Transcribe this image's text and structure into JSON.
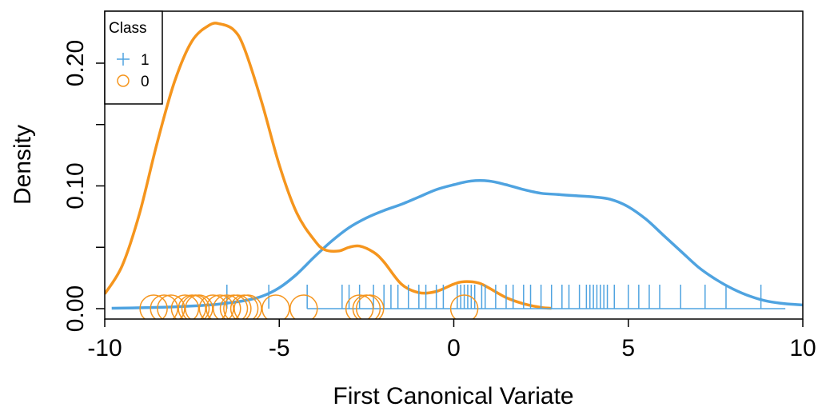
{
  "chart_data": {
    "type": "line",
    "title": "",
    "xlabel": "First Canonical Variate",
    "ylabel": "Density",
    "xlim": [
      -10,
      10
    ],
    "ylim": [
      0,
      0.24
    ],
    "x_ticks": [
      -10,
      -5,
      0,
      5,
      10
    ],
    "x_tick_labels": [
      "-10",
      "-5",
      "0",
      "5",
      "10"
    ],
    "y_ticks": [
      0,
      0.05,
      0.1,
      0.15,
      0.2
    ],
    "y_tick_labels": [
      "0.00",
      "",
      "0.10",
      "",
      "0.20"
    ],
    "legend": {
      "title": "Class",
      "position": "top-left",
      "entries": [
        {
          "label": "1",
          "marker": "plus",
          "color": "#4FA3E0"
        },
        {
          "label": "0",
          "marker": "circle",
          "color": "#F5951D"
        }
      ]
    },
    "series": [
      {
        "name": "1",
        "color": "#4FA3E0",
        "x": [
          -9.8,
          -9,
          -8,
          -7,
          -6.5,
          -6,
          -5.5,
          -5,
          -4.5,
          -4,
          -3.5,
          -3,
          -2.5,
          -2,
          -1.5,
          -1,
          -0.5,
          0,
          0.5,
          1,
          1.5,
          2,
          2.5,
          3,
          3.5,
          4,
          4.5,
          5,
          5.5,
          6,
          6.5,
          7,
          7.5,
          8,
          8.5,
          9,
          9.5,
          10
        ],
        "y": [
          0.0003,
          0.0007,
          0.0015,
          0.003,
          0.0045,
          0.0065,
          0.01,
          0.017,
          0.028,
          0.042,
          0.055,
          0.066,
          0.074,
          0.08,
          0.085,
          0.091,
          0.097,
          0.101,
          0.104,
          0.104,
          0.101,
          0.097,
          0.094,
          0.093,
          0.092,
          0.091,
          0.089,
          0.083,
          0.073,
          0.06,
          0.047,
          0.034,
          0.024,
          0.016,
          0.01,
          0.006,
          0.004,
          0.003
        ]
      },
      {
        "name": "0",
        "color": "#F5951D",
        "x": [
          -10,
          -9.5,
          -9,
          -8.5,
          -8,
          -7.5,
          -7,
          -6.7,
          -6.3,
          -6,
          -5.5,
          -5,
          -4.5,
          -4,
          -3.7,
          -3.3,
          -3,
          -2.7,
          -2.3,
          -2,
          -1.5,
          -1,
          -0.5,
          0,
          0.3,
          0.7,
          1,
          1.5,
          2,
          2.5,
          2.8
        ],
        "y": [
          0.012,
          0.035,
          0.078,
          0.135,
          0.185,
          0.218,
          0.231,
          0.232,
          0.227,
          0.212,
          0.168,
          0.117,
          0.078,
          0.056,
          0.048,
          0.047,
          0.05,
          0.051,
          0.046,
          0.038,
          0.02,
          0.013,
          0.014,
          0.02,
          0.022,
          0.021,
          0.017,
          0.009,
          0.004,
          0.001,
          0.0003
        ]
      }
    ],
    "rug": [
      {
        "name": "1",
        "marker": "plus",
        "color": "#4FA3E0",
        "values": [
          -6.5,
          -5.3,
          -4.2,
          -3.2,
          -3.0,
          -2.7,
          -2.3,
          -2.0,
          -1.8,
          -1.6,
          -1.3,
          -1.0,
          -0.8,
          -0.5,
          -0.3,
          0.1,
          0.2,
          0.3,
          0.4,
          0.5,
          0.6,
          0.8,
          0.9,
          1.2,
          1.5,
          1.7,
          2.0,
          2.2,
          2.5,
          2.8,
          3.1,
          3.3,
          3.6,
          3.8,
          3.9,
          4.0,
          4.1,
          4.2,
          4.3,
          4.4,
          4.6,
          5.0,
          5.3,
          5.6,
          5.9,
          6.5,
          7.2,
          7.8,
          8.8
        ]
      },
      {
        "name": "0",
        "marker": "circle",
        "color": "#F5951D",
        "values": [
          -8.6,
          -8.3,
          -8.1,
          -7.7,
          -7.5,
          -7.4,
          -7.3,
          -6.9,
          -6.7,
          -6.5,
          -6.3,
          -6.2,
          -6.0,
          -5.9,
          -5.1,
          -4.3,
          -2.7,
          -2.5,
          -2.4,
          0.3
        ]
      }
    ],
    "grid": false
  }
}
